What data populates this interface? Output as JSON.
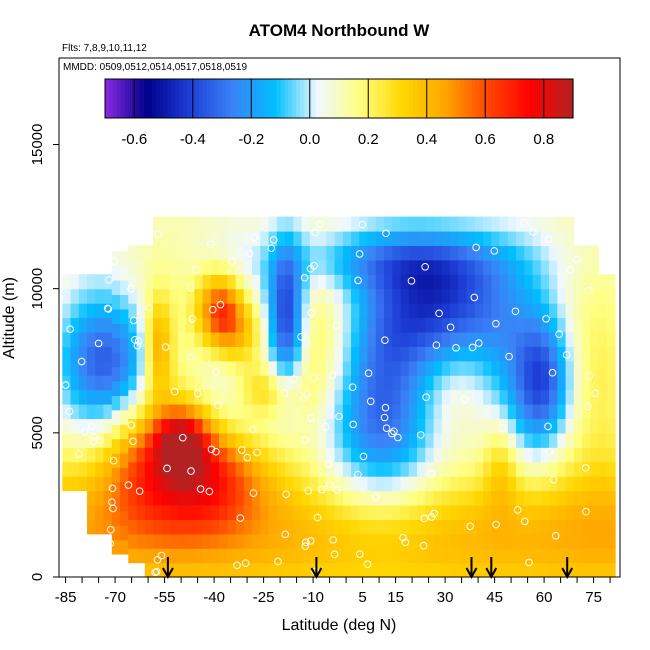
{
  "chart_data": {
    "type": "heatmap",
    "title": "ATOM4 Northbound W",
    "subtitle_flights": "Flts: 7,8,9,10,11,12",
    "subtitle_dates": "MMDD: 0509,0512,0514,0517,0518,0519",
    "xlabel": "Latitude (deg N)",
    "ylabel": "Altitude (m)",
    "xlim": [
      -87,
      83
    ],
    "ylim": [
      0,
      18000
    ],
    "x_ticks": [
      -85,
      -70,
      -55,
      -40,
      -25,
      -10,
      5,
      15,
      30,
      45,
      60,
      75
    ],
    "y_ticks": [
      0,
      5000,
      10000,
      15000
    ],
    "colorbar": {
      "range": [
        -0.7,
        0.9
      ],
      "ticks": [
        -0.6,
        -0.4,
        -0.2,
        0.0,
        0.2,
        0.4,
        0.6,
        0.8
      ],
      "tick_labels": [
        "-0.6",
        "-0.4",
        "-0.2",
        "0.0",
        "0.2",
        "0.4",
        "0.6",
        "0.8"
      ],
      "colors": [
        "#8a2be2",
        "#00008b",
        "#1e3fd8",
        "#3b82f6",
        "#00bfff",
        "#f0f8ff",
        "#ffff80",
        "#ffd700",
        "#ffa500",
        "#ff4500",
        "#ff0000",
        "#b22222"
      ]
    },
    "flight_arrows_lat": [
      -54,
      -9,
      38,
      44,
      67
    ],
    "grid": false,
    "legend": "colorbar top"
  }
}
